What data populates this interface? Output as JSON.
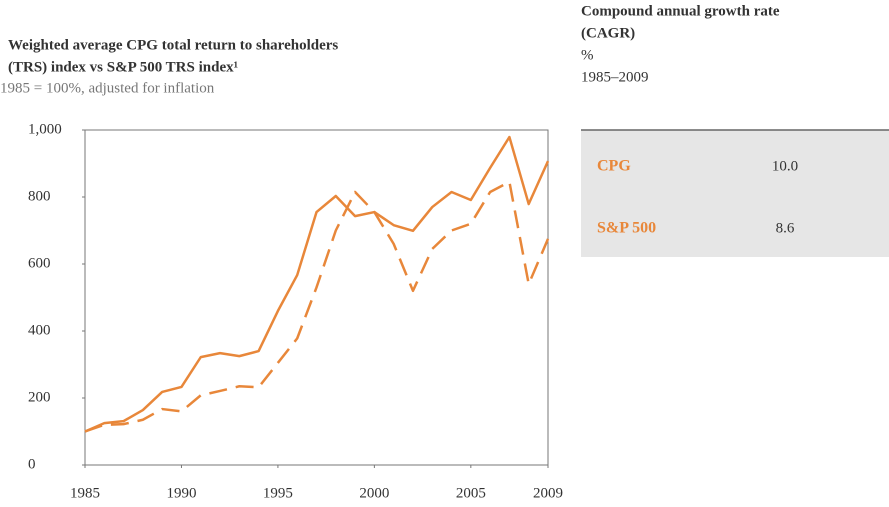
{
  "chart_data": {
    "type": "line",
    "title": [
      "Weighted average CPG total return to shareholders",
      "(TRS) index vs S&P 500 TRS index¹"
    ],
    "subtitle": "1985 = 100%, adjusted for inflation",
    "x": [
      1985,
      1986,
      1987,
      1988,
      1989,
      1990,
      1991,
      1992,
      1993,
      1994,
      1995,
      1996,
      1997,
      1998,
      1999,
      2000,
      2001,
      2002,
      2003,
      2004,
      2005,
      2006,
      2007,
      2008,
      2009
    ],
    "series": [
      {
        "color": "#e8873a",
        "dashed": false,
        "values": [
          100,
          125,
          131,
          164,
          218,
          233,
          322,
          334,
          325,
          340,
          460,
          567,
          755,
          803,
          743,
          755,
          716,
          699,
          770,
          815,
          791,
          887,
          979,
          779,
          907
        ]
      },
      {
        "color": "#e8873a",
        "dashed": true,
        "values": [
          100,
          120,
          122,
          135,
          167,
          160,
          208,
          221,
          235,
          232,
          305,
          378,
          530,
          700,
          815,
          755,
          660,
          520,
          645,
          700,
          720,
          815,
          845,
          540,
          675
        ]
      }
    ],
    "xlim": [
      1985,
      2009
    ],
    "xticks": [
      1985,
      1990,
      1995,
      2000,
      2005,
      2009
    ],
    "ylim": [
      0,
      1000
    ],
    "yticks": [
      0,
      200,
      400,
      600,
      800,
      {
        "value": 1000,
        "label": "1,000"
      }
    ]
  },
  "table": {
    "title": [
      "Compound annual growth rate",
      "(CAGR)"
    ],
    "unit": "%",
    "period": "1985–2009",
    "rows": [
      [
        "CPG",
        "10.0"
      ],
      [
        "S&P 500",
        "8.6"
      ]
    ]
  }
}
